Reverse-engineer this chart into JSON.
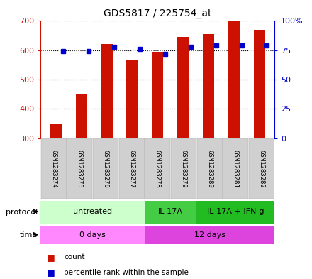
{
  "title": "GDS5817 / 225754_at",
  "samples": [
    "GSM1283274",
    "GSM1283275",
    "GSM1283276",
    "GSM1283277",
    "GSM1283278",
    "GSM1283279",
    "GSM1283280",
    "GSM1283281",
    "GSM1283282"
  ],
  "counts": [
    350,
    452,
    620,
    568,
    595,
    645,
    655,
    700,
    670
  ],
  "percentiles": [
    74,
    74,
    78,
    76,
    72,
    78,
    79,
    79,
    79
  ],
  "y_min": 300,
  "y_max": 700,
  "y_ticks": [
    300,
    400,
    500,
    600,
    700
  ],
  "y2_ticks": [
    0,
    25,
    50,
    75,
    100
  ],
  "bar_color": "#cc1100",
  "dot_color": "#0000cc",
  "protocol_groups": [
    {
      "label": "untreated",
      "start": 0,
      "end": 4,
      "color": "#ccffcc"
    },
    {
      "label": "IL-17A",
      "start": 4,
      "end": 6,
      "color": "#44cc44"
    },
    {
      "label": "IL-17A + IFN-g",
      "start": 6,
      "end": 9,
      "color": "#22bb22"
    }
  ],
  "time_groups": [
    {
      "label": "0 days",
      "start": 0,
      "end": 4,
      "color": "#ff88ff"
    },
    {
      "label": "12 days",
      "start": 4,
      "end": 9,
      "color": "#dd44dd"
    }
  ],
  "protocol_label": "protocol",
  "time_label": "time",
  "count_legend": "count",
  "percentile_legend": "percentile rank within the sample"
}
